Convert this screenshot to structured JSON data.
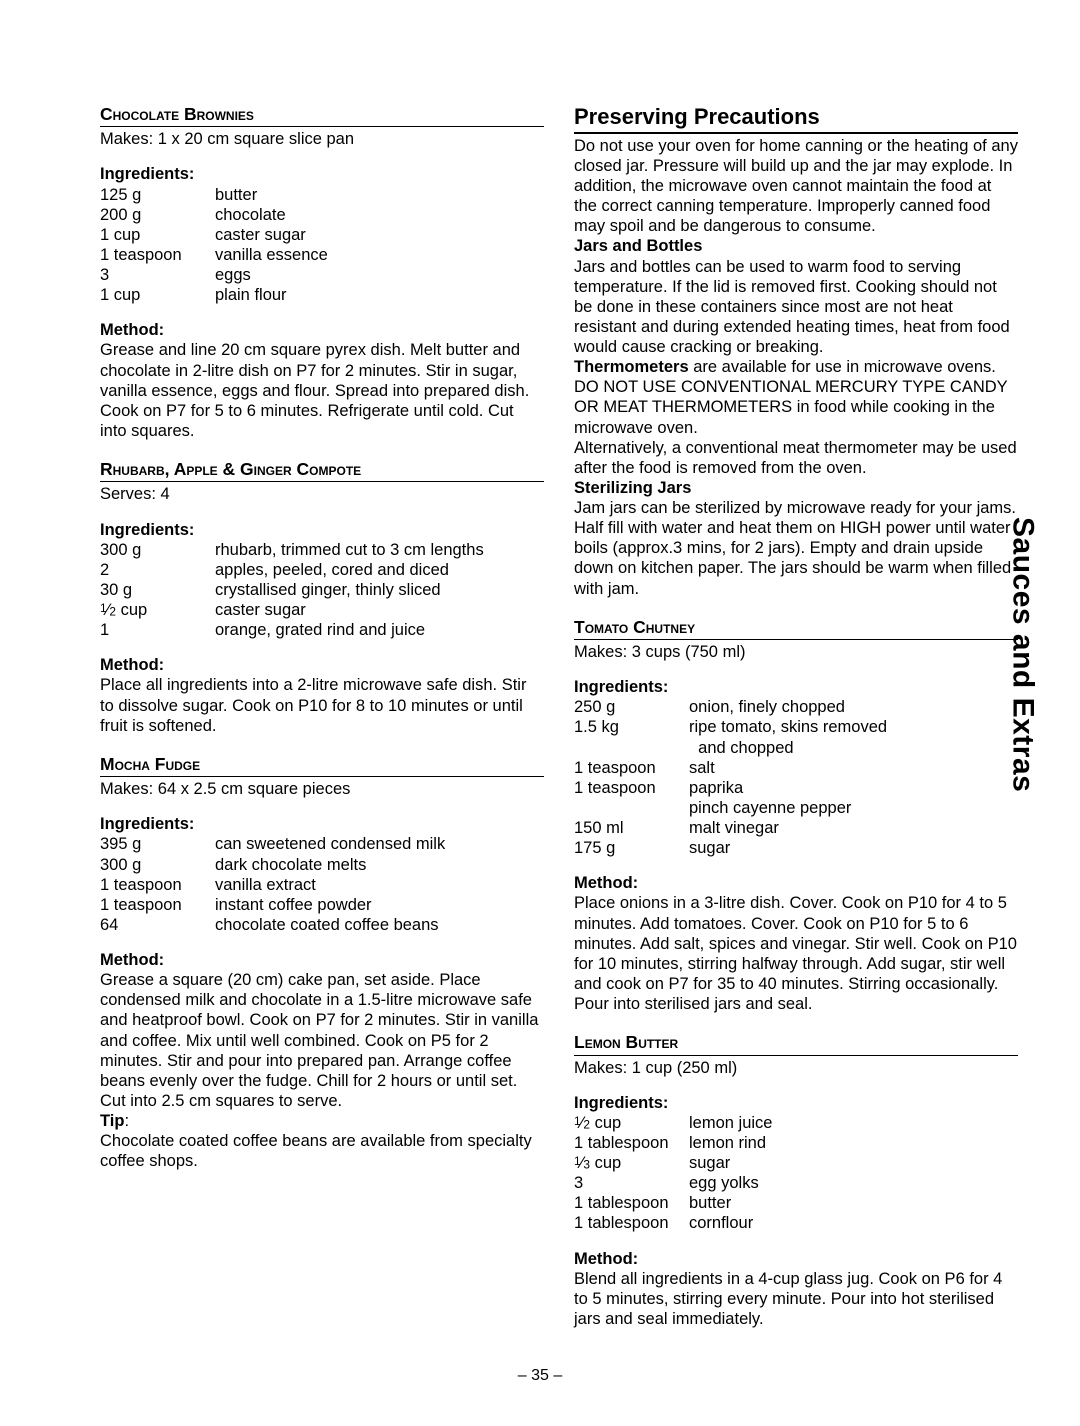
{
  "page_number": "– 35 –",
  "sidebar_label": "Sauces and Extras",
  "left": {
    "recipes": [
      {
        "title": "Chocolate Brownies",
        "yield": "Makes: 1 x 20 cm square slice pan",
        "ingredients_heading": "Ingredients:",
        "ingredients": [
          {
            "qty": "125 g",
            "name": "butter"
          },
          {
            "qty": "200 g",
            "name": "chocolate"
          },
          {
            "qty": "1 cup",
            "name": "caster sugar"
          },
          {
            "qty": "1 teaspoon",
            "name": "vanilla essence"
          },
          {
            "qty": "3",
            "name": "eggs"
          },
          {
            "qty": "1 cup",
            "name": "plain flour"
          }
        ],
        "method_heading": "Method:",
        "method": "Grease and line 20 cm square pyrex dish. Melt butter and chocolate in 2-litre dish on P7 for 2 minutes. Stir in sugar, vanilla essence, eggs and flour. Spread into prepared dish. Cook on P7 for 5 to 6 minutes. Refrigerate until cold. Cut into squares."
      },
      {
        "title": "Rhubarb, Apple & Ginger Compote",
        "yield": "Serves: 4",
        "ingredients_heading": "Ingredients:",
        "ingredients": [
          {
            "qty": "300 g",
            "name": "rhubarb, trimmed cut to 3 cm lengths"
          },
          {
            "qty": "2",
            "name": "apples, peeled, cored and diced"
          },
          {
            "qty": "30 g",
            "name": "crystallised ginger, thinly sliced"
          },
          {
            "qty": "1/2 cup",
            "frac": "half",
            "name": "caster sugar"
          },
          {
            "qty": "1",
            "name": "orange, grated rind and juice"
          }
        ],
        "method_heading": "Method:",
        "method": "Place all ingredients into a 2-litre microwave safe dish. Stir to dissolve sugar. Cook on P10 for 8 to 10 minutes or until fruit is softened."
      },
      {
        "title": "Mocha Fudge",
        "yield": "Makes: 64 x 2.5 cm square pieces",
        "ingredients_heading": "Ingredients:",
        "ingredients": [
          {
            "qty": "395 g",
            "name": "can sweetened condensed milk"
          },
          {
            "qty": "300 g",
            "name": "dark chocolate melts"
          },
          {
            "qty": "1 teaspoon",
            "name": "vanilla extract"
          },
          {
            "qty": "1 teaspoon",
            "name": "instant coffee powder"
          },
          {
            "qty": "64",
            "name": "chocolate coated coffee beans"
          }
        ],
        "method_heading": "Method:",
        "method": "Grease a square (20 cm) cake pan, set aside. Place condensed milk and chocolate in a 1.5-litre microwave safe and heatproof bowl. Cook on P7 for 2 minutes. Stir in vanilla and coffee. Mix until well combined. Cook on P5 for 2 minutes. Stir and pour into prepared pan. Arrange coffee beans evenly over the fudge. Chill for 2 hours or until set. Cut into 2.5 cm squares to serve.",
        "tip_heading": "Tip",
        "tip": "Chocolate coated coffee beans are available from specialty coffee shops."
      }
    ]
  },
  "right": {
    "section_heading": "Preserving Precautions",
    "intro": "Do not use your oven for home canning or the heating of any closed jar. Pressure will build up and the jar may explode. In addition, the microwave oven cannot maintain the food at the correct canning temperature. Improperly canned food may spoil and be dangerous to consume.",
    "sub1_heading": "Jars and Bottles",
    "sub1_body": "Jars and bottles can be used to warm food to serving temperature. If the lid is removed first. Cooking should not be done in these containers since most are not heat resistant and during extended heating times, heat from food would cause cracking or breaking.",
    "thermo_label": "Thermometers",
    "thermo_body": " are available for use in microwave ovens. DO NOT USE CONVENTIONAL MERCURY TYPE CANDY OR MEAT THERMOMETERS in food while cooking in the microwave oven.",
    "thermo_alt": "Alternatively, a conventional meat thermometer may be used after the food is removed from the oven.",
    "sub2_heading": "Sterilizing Jars",
    "sub2_body": "Jam jars can be sterilized by microwave ready for your jams. Half fill with water and heat them on HIGH power until water boils (approx.3 mins, for 2 jars). Empty and drain upside down on kitchen paper. The jars should be warm when filled with jam.",
    "recipes": [
      {
        "title": "Tomato Chutney",
        "yield": "Makes: 3 cups (750 ml)",
        "ingredients_heading": "Ingredients:",
        "ingredients": [
          {
            "qty": "250 g",
            "name": "onion, finely chopped"
          },
          {
            "qty": "1.5 kg",
            "name": "ripe tomato, skins removed and chopped",
            "indent": true
          },
          {
            "qty": "1 teaspoon",
            "name": "salt"
          },
          {
            "qty": "1 teaspoon",
            "name": "paprika"
          },
          {
            "qty": "",
            "name": "pinch cayenne pepper"
          },
          {
            "qty": "150 ml",
            "name": "malt vinegar"
          },
          {
            "qty": "175 g",
            "name": "sugar"
          }
        ],
        "method_heading": "Method:",
        "method": "Place onions in a 3-litre dish. Cover. Cook on P10 for 4 to 5 minutes. Add tomatoes. Cover. Cook on P10 for 5 to 6 minutes. Add salt, spices and vinegar. Stir well. Cook on P10 for 10 minutes, stirring halfway through. Add sugar, stir well and cook on P7 for 35 to 40 minutes. Stirring occasionally. Pour into sterilised jars and seal."
      },
      {
        "title": "Lemon Butter",
        "yield": "Makes: 1 cup (250 ml)",
        "ingredients_heading": "Ingredients:",
        "ingredients": [
          {
            "qty": "1/2 cup",
            "frac": "half",
            "name": "lemon juice"
          },
          {
            "qty": "1 tablespoon",
            "name": "lemon rind"
          },
          {
            "qty": "1/3 cup",
            "frac": "third",
            "name": "sugar"
          },
          {
            "qty": "3",
            "name": "egg yolks"
          },
          {
            "qty": "1 tablespoon",
            "name": "butter"
          },
          {
            "qty": "1 tablespoon",
            "name": "cornflour"
          }
        ],
        "method_heading": "Method:",
        "method": "Blend all ingredients in a 4-cup glass jug. Cook on P6 for 4 to 5 minutes, stirring every minute. Pour into hot sterilised jars and seal immediately."
      }
    ]
  }
}
